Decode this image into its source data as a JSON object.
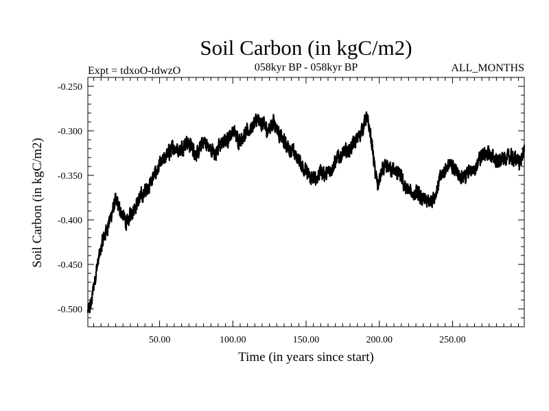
{
  "chart_data": {
    "type": "line",
    "title": "Soil Carbon (in kgC/m2)",
    "subtitle_left": "Expt = tdxoO-tdwzO",
    "subtitle_center": "058kyr BP - 058kyr BP",
    "subtitle_right": "ALL_MONTHS",
    "xlabel": "Time (in years since start)",
    "ylabel": "Soil Carbon (in kgC/m2)",
    "xlim": [
      1,
      299
    ],
    "ylim": [
      -0.52,
      -0.24
    ],
    "x_ticks": [
      50,
      100,
      150,
      200,
      250
    ],
    "x_tick_labels": [
      "50.00",
      "100.00",
      "150.00",
      "200.00",
      "250.00"
    ],
    "y_ticks": [
      -0.25,
      -0.3,
      -0.35,
      -0.4,
      -0.45,
      -0.5
    ],
    "y_tick_labels": [
      "-0.250",
      "-0.300",
      "-0.350",
      "-0.400",
      "-0.450",
      "-0.500"
    ],
    "grid": false,
    "line_color": "#000000",
    "series": [
      {
        "x": [
          1,
          3,
          5,
          7,
          9,
          11,
          14,
          17,
          20,
          22,
          25,
          28,
          30,
          33,
          36,
          40,
          44,
          48,
          52,
          56,
          60,
          64,
          68,
          72,
          76,
          80,
          84,
          88,
          92,
          96,
          100,
          104,
          108,
          112,
          116,
          120,
          124,
          128,
          132,
          136,
          140,
          144,
          148,
          152,
          156,
          160,
          164,
          168,
          172,
          176,
          180,
          184,
          188,
          191,
          193,
          195,
          197,
          199,
          202,
          206,
          210,
          214,
          218,
          222,
          226,
          230,
          234,
          238,
          242,
          246,
          250,
          254,
          258,
          262,
          266,
          270,
          274,
          278,
          282,
          286,
          290,
          294,
          297,
          299
        ],
        "values": [
          -0.503,
          -0.497,
          -0.475,
          -0.455,
          -0.44,
          -0.425,
          -0.41,
          -0.395,
          -0.378,
          -0.385,
          -0.395,
          -0.405,
          -0.393,
          -0.385,
          -0.378,
          -0.368,
          -0.358,
          -0.345,
          -0.335,
          -0.325,
          -0.318,
          -0.322,
          -0.312,
          -0.318,
          -0.328,
          -0.31,
          -0.32,
          -0.325,
          -0.315,
          -0.31,
          -0.3,
          -0.31,
          -0.305,
          -0.298,
          -0.288,
          -0.292,
          -0.3,
          -0.288,
          -0.305,
          -0.315,
          -0.322,
          -0.33,
          -0.34,
          -0.352,
          -0.355,
          -0.345,
          -0.35,
          -0.34,
          -0.33,
          -0.325,
          -0.32,
          -0.312,
          -0.3,
          -0.285,
          -0.295,
          -0.315,
          -0.345,
          -0.362,
          -0.345,
          -0.34,
          -0.345,
          -0.35,
          -0.365,
          -0.37,
          -0.372,
          -0.378,
          -0.38,
          -0.372,
          -0.352,
          -0.34,
          -0.34,
          -0.348,
          -0.352,
          -0.345,
          -0.34,
          -0.328,
          -0.325,
          -0.33,
          -0.335,
          -0.33,
          -0.33,
          -0.332,
          -0.335,
          -0.318
        ]
      }
    ]
  }
}
